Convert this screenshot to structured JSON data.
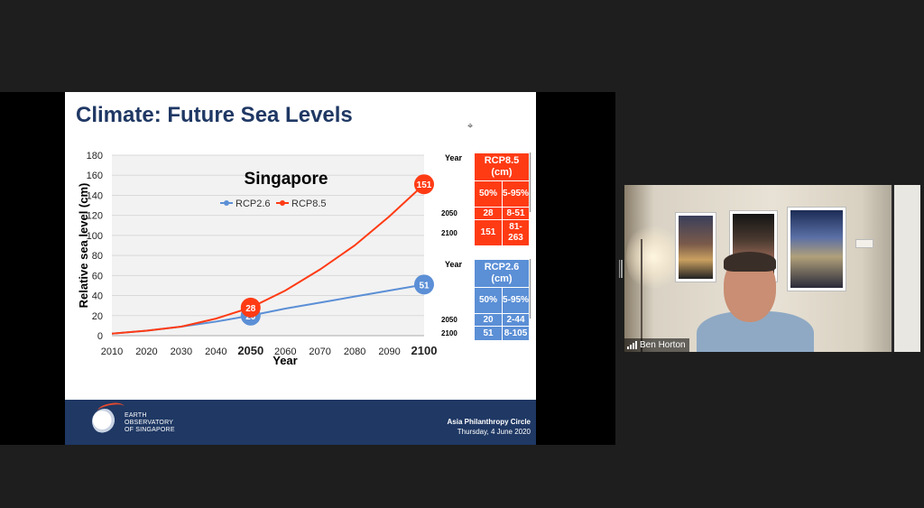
{
  "slide": {
    "title": "Climate: Future Sea Levels",
    "cursor": "⌖",
    "footer": {
      "logo_text": [
        "EARTH",
        "OBSERVATORY",
        "OF SINGAPORE"
      ],
      "event": "Asia Philanthropy Circle",
      "date": "Thursday, 4 June 2020"
    }
  },
  "chart_data": {
    "type": "line",
    "title": "Singapore",
    "xlabel": "Year",
    "ylabel": "Relative sea level (cm)",
    "xlim": [
      2010,
      2100
    ],
    "ylim": [
      0,
      180
    ],
    "x_ticks": [
      "2010",
      "2020",
      "2030",
      "2040",
      "2050",
      "2060",
      "2070",
      "2080",
      "2090",
      "2100"
    ],
    "y_ticks": [
      "0",
      "20",
      "40",
      "60",
      "80",
      "100",
      "120",
      "140",
      "160",
      "180"
    ],
    "bold_x_ticks": [
      "2050",
      "2100"
    ],
    "grid": true,
    "legend_position": "top-center",
    "series": [
      {
        "name": "RCP2.6",
        "color": "#5b8fd6",
        "x": [
          2010,
          2020,
          2030,
          2040,
          2050,
          2060,
          2070,
          2080,
          2090,
          2100
        ],
        "values": [
          2,
          5,
          9,
          14,
          20,
          27,
          33,
          39,
          45,
          51
        ]
      },
      {
        "name": "RCP8.5",
        "color": "#ff3b14",
        "x": [
          2010,
          2020,
          2030,
          2040,
          2050,
          2060,
          2070,
          2080,
          2090,
          2100
        ],
        "values": [
          2,
          5,
          9,
          17,
          28,
          45,
          66,
          90,
          119,
          151
        ]
      }
    ],
    "annotations": [
      {
        "series": "RCP2.6",
        "x": 2050,
        "y": 20,
        "label": "20"
      },
      {
        "series": "RCP8.5",
        "x": 2050,
        "y": 28,
        "label": "28"
      },
      {
        "series": "RCP8.5",
        "x": 2100,
        "y": 151,
        "label": "151"
      },
      {
        "series": "RCP2.6",
        "x": 2100,
        "y": 51,
        "label": "51"
      }
    ]
  },
  "tables": {
    "rcp85": {
      "year_label": "Year",
      "header": "RCP8.5 (cm)",
      "subheaders": [
        "50%",
        "5-95%"
      ],
      "rows": [
        {
          "year": "2050",
          "median": "28",
          "range": "8-51"
        },
        {
          "year": "2100",
          "median": "151",
          "range": "81-263"
        }
      ]
    },
    "rcp26": {
      "year_label": "Year",
      "header": "RCP2.6 (cm)",
      "subheaders": [
        "50%",
        "5-95%"
      ],
      "rows": [
        {
          "year": "2050",
          "median": "20",
          "range": "2-44"
        },
        {
          "year": "2100",
          "median": "51",
          "range": "8-105"
        }
      ]
    }
  },
  "participant": {
    "name": "Ben Horton"
  }
}
